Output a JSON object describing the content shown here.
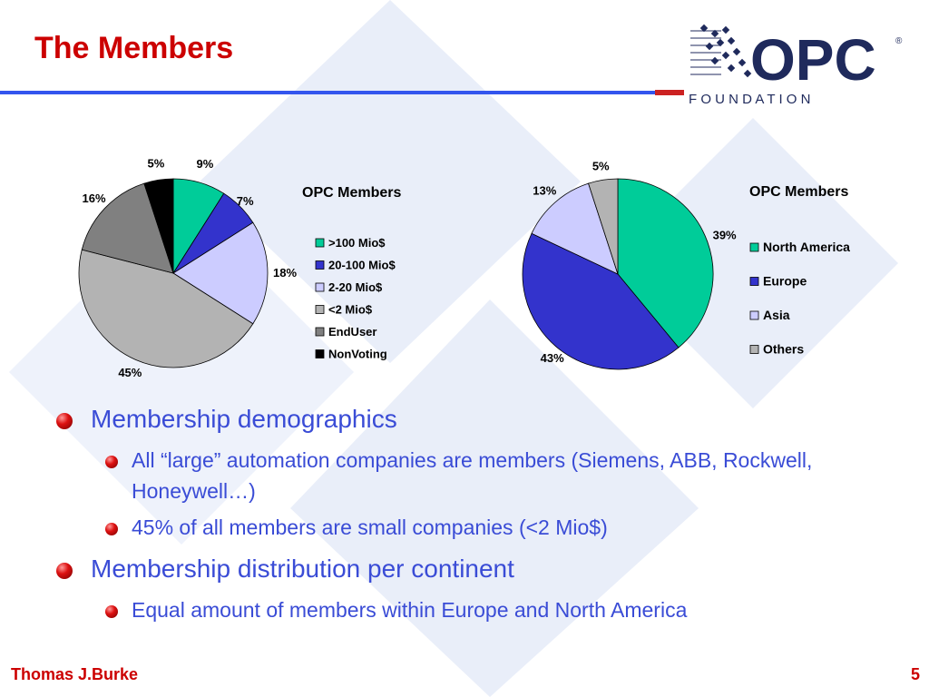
{
  "slide": {
    "title": "The Members",
    "footer_author": "Thomas J.Burke",
    "page_number": "5"
  },
  "logo": {
    "word": "OPC",
    "subtitle": "F O U N D A T I O N",
    "registered": "®"
  },
  "colors": {
    "title_red": "#cc0000",
    "bullet_blue": "#3a4cd6",
    "rule_blue": "#3355ee",
    "logo_navy": "#1f2a5c"
  },
  "chart_data": [
    {
      "type": "pie",
      "title": "OPC Members",
      "series": [
        {
          "name": ">100 Mio$",
          "value": 9,
          "label": "9%",
          "color": "#00cc99"
        },
        {
          "name": "20-100 Mio$",
          "value": 7,
          "label": "7%",
          "color": "#3333cc"
        },
        {
          "name": "2-20 Mio$",
          "value": 18,
          "label": "18%",
          "color": "#ccccff"
        },
        {
          "name": "<2 Mio$",
          "value": 45,
          "label": "45%",
          "color": "#b3b3b3"
        },
        {
          "name": "EndUser",
          "value": 16,
          "label": "16%",
          "color": "#808080"
        },
        {
          "name": "NonVoting",
          "value": 5,
          "label": "5%",
          "color": "#000000"
        }
      ],
      "legend": "right"
    },
    {
      "type": "pie",
      "title": "OPC Members",
      "series": [
        {
          "name": "North America",
          "value": 39,
          "label": "39%",
          "color": "#00cc99"
        },
        {
          "name": "Europe",
          "value": 43,
          "label": "43%",
          "color": "#3333cc"
        },
        {
          "name": "Asia",
          "value": 13,
          "label": "13%",
          "color": "#ccccff"
        },
        {
          "name": "Others",
          "value": 5,
          "label": "5%",
          "color": "#b3b3b3"
        }
      ],
      "legend": "right"
    }
  ],
  "bullets": [
    {
      "level": 1,
      "text": "Membership demographics"
    },
    {
      "level": 2,
      "text": "All “large” automation companies are members (Siemens, ABB, Rockwell, Honeywell…)"
    },
    {
      "level": 2,
      "text": "45% of all members are small companies (<2 Mio$)"
    },
    {
      "level": 1,
      "text": "Membership distribution per continent"
    },
    {
      "level": 2,
      "text": "Equal amount of members within Europe and North America"
    }
  ]
}
